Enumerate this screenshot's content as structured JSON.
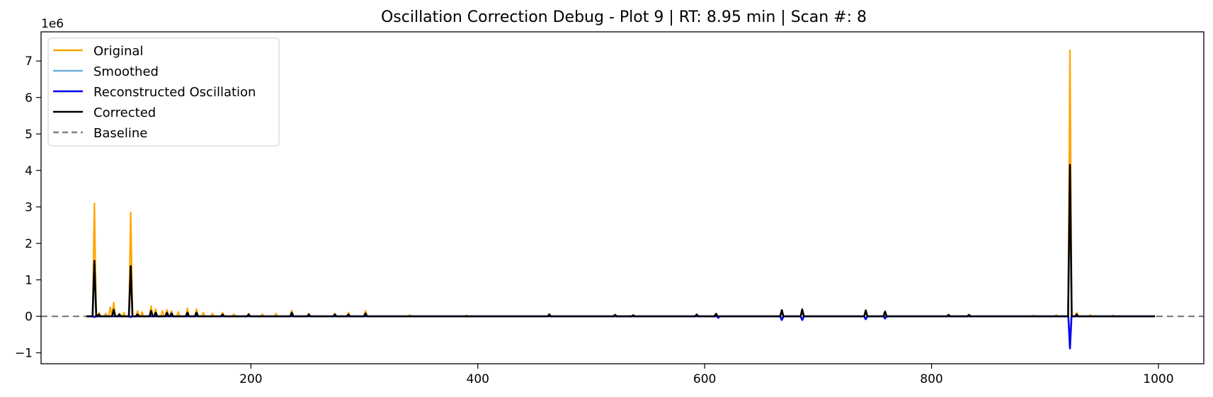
{
  "chart_data": {
    "type": "line",
    "title": "Oscillation Correction Debug - Plot 9 | RT: 8.95 min | Scan #: 8",
    "xlabel": "",
    "ylabel": "",
    "y_offset_label": "1e6",
    "xlim": [
      15,
      1040
    ],
    "ylim": [
      -1.3,
      7.8
    ],
    "xticks": [
      200,
      400,
      600,
      800,
      1000
    ],
    "yticks": [
      -1,
      0,
      1,
      2,
      3,
      4,
      5,
      6,
      7
    ],
    "grid": false,
    "legend_position": "top-left",
    "baseline": 0,
    "colors": {
      "original": "#ffa500",
      "smoothed": "#6baed6",
      "reconstructed": "#0000ee",
      "corrected": "#000000",
      "baseline": "#808080"
    },
    "x_range": [
      55,
      997
    ],
    "series": [
      {
        "name": "Original",
        "style": "solid",
        "peaks": [
          [
            62,
            3.1
          ],
          [
            66,
            0.1
          ],
          [
            72,
            0.08
          ],
          [
            76,
            0.25
          ],
          [
            79,
            0.38
          ],
          [
            84,
            0.08
          ],
          [
            88,
            0.1
          ],
          [
            94,
            2.85
          ],
          [
            100,
            0.15
          ],
          [
            104,
            0.12
          ],
          [
            112,
            0.28
          ],
          [
            116,
            0.2
          ],
          [
            122,
            0.15
          ],
          [
            126,
            0.18
          ],
          [
            130,
            0.15
          ],
          [
            136,
            0.12
          ],
          [
            144,
            0.22
          ],
          [
            152,
            0.2
          ],
          [
            158,
            0.1
          ],
          [
            166,
            0.08
          ],
          [
            175,
            0.1
          ],
          [
            185,
            0.06
          ],
          [
            198,
            0.08
          ],
          [
            210,
            0.06
          ],
          [
            222,
            0.08
          ],
          [
            236,
            0.16
          ],
          [
            251,
            0.08
          ],
          [
            274,
            0.08
          ],
          [
            286,
            0.1
          ],
          [
            301,
            0.15
          ],
          [
            340,
            0.04
          ],
          [
            390,
            0.03
          ],
          [
            463,
            0.07
          ],
          [
            521,
            0.05
          ],
          [
            537,
            0.04
          ],
          [
            593,
            0.05
          ],
          [
            610,
            0.08
          ],
          [
            668,
            0.16
          ],
          [
            686,
            0.2
          ],
          [
            742,
            0.18
          ],
          [
            759,
            0.14
          ],
          [
            815,
            0.05
          ],
          [
            833,
            0.05
          ],
          [
            890,
            0.03
          ],
          [
            910,
            0.04
          ],
          [
            922,
            7.3
          ],
          [
            928,
            0.1
          ],
          [
            940,
            0.04
          ],
          [
            960,
            0.03
          ]
        ]
      },
      {
        "name": "Smoothed",
        "style": "solid",
        "peaks": [
          [
            62,
            1.45
          ],
          [
            79,
            0.15
          ],
          [
            94,
            1.3
          ],
          [
            112,
            0.12
          ],
          [
            144,
            0.08
          ],
          [
            236,
            0.08
          ],
          [
            301,
            0.06
          ],
          [
            668,
            0.14
          ],
          [
            686,
            0.17
          ],
          [
            742,
            0.15
          ],
          [
            759,
            0.12
          ],
          [
            922,
            3.8
          ]
        ]
      },
      {
        "name": "Reconstructed Oscillation",
        "style": "solid",
        "peaks": [
          [
            62,
            -0.02
          ],
          [
            94,
            -0.02
          ],
          [
            612,
            -0.04
          ],
          [
            668,
            -0.1
          ],
          [
            686,
            -0.1
          ],
          [
            742,
            -0.08
          ],
          [
            759,
            -0.06
          ],
          [
            922,
            -0.88
          ]
        ]
      },
      {
        "name": "Corrected",
        "style": "solid",
        "peaks": [
          [
            62,
            1.52
          ],
          [
            66,
            0.05
          ],
          [
            79,
            0.18
          ],
          [
            84,
            0.05
          ],
          [
            94,
            1.38
          ],
          [
            100,
            0.05
          ],
          [
            112,
            0.15
          ],
          [
            116,
            0.1
          ],
          [
            126,
            0.1
          ],
          [
            130,
            0.08
          ],
          [
            144,
            0.1
          ],
          [
            152,
            0.1
          ],
          [
            175,
            0.05
          ],
          [
            198,
            0.05
          ],
          [
            236,
            0.1
          ],
          [
            251,
            0.05
          ],
          [
            274,
            0.05
          ],
          [
            286,
            0.05
          ],
          [
            301,
            0.08
          ],
          [
            463,
            0.05
          ],
          [
            521,
            0.04
          ],
          [
            537,
            0.03
          ],
          [
            593,
            0.05
          ],
          [
            610,
            0.07
          ],
          [
            668,
            0.17
          ],
          [
            686,
            0.19
          ],
          [
            742,
            0.16
          ],
          [
            759,
            0.13
          ],
          [
            815,
            0.04
          ],
          [
            833,
            0.04
          ],
          [
            922,
            4.15
          ],
          [
            928,
            0.05
          ]
        ]
      },
      {
        "name": "Baseline",
        "style": "dashed",
        "value": 0
      }
    ]
  }
}
